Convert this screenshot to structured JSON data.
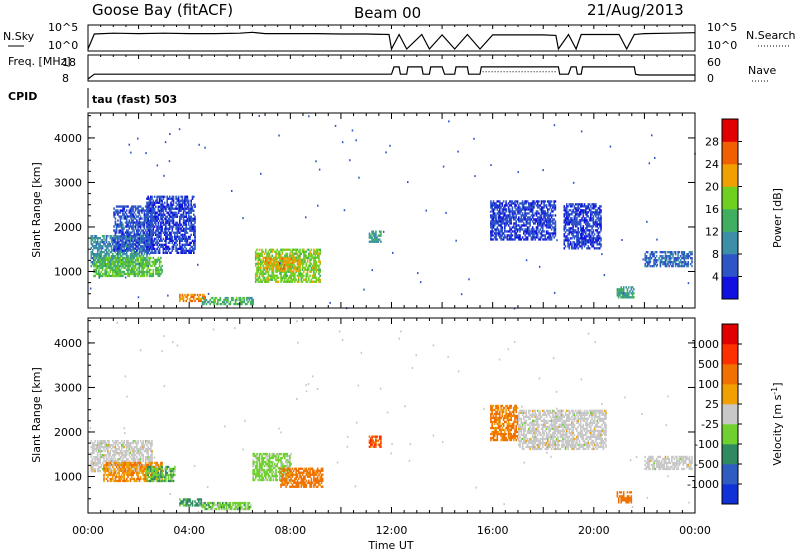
{
  "header": {
    "station": "Goose Bay (fitACF)",
    "beam": "Beam 00",
    "date": "21/Aug/2013"
  },
  "colors": {
    "ink": "#000000",
    "background": "#ffffff"
  },
  "chart_data": [
    {
      "type": "line",
      "panel": "noise",
      "left_label": "N.Sky",
      "right_label": "N.Search",
      "left_ticks": [
        "10^5",
        "10^0"
      ],
      "right_ticks": [
        "10^5",
        "10^0"
      ],
      "x_range_hours": [
        0,
        24
      ],
      "series": [
        {
          "name": "N.Sky",
          "style": "solid",
          "x": [
            0,
            0.25,
            1,
            2,
            3,
            4,
            5,
            6,
            6.5,
            7,
            8,
            9,
            10,
            11,
            11.9,
            12,
            12.3,
            12.6,
            13.2,
            13.5,
            14,
            14.5,
            15,
            15.5,
            16,
            17,
            18,
            18.5,
            18.6,
            19,
            19.3,
            19.5,
            20,
            21,
            21.3,
            21.6,
            22,
            23,
            24
          ],
          "y": [
            0,
            3.4,
            3.6,
            3.5,
            3.6,
            3.5,
            3.5,
            3.6,
            3.8,
            3.5,
            3.5,
            3.5,
            3.4,
            3.4,
            3.3,
            0,
            3.3,
            0,
            3.3,
            0,
            3.2,
            0,
            3.3,
            0,
            3.2,
            3.2,
            3.2,
            3.1,
            0,
            3.3,
            0,
            3.3,
            3.3,
            3.3,
            0,
            3.3,
            3.5,
            3.6,
            3.7
          ]
        }
      ]
    },
    {
      "type": "line",
      "panel": "frequency",
      "left_label": "Freq. [MHz]",
      "right_label": "Nave",
      "left_ticks": [
        "18",
        "8"
      ],
      "right_ticks": [
        "60",
        "0"
      ],
      "x_range_hours": [
        0,
        24
      ],
      "series": [
        {
          "name": "Freq.",
          "style": "solid",
          "x": [
            0,
            0.25,
            12,
            12.1,
            12.3,
            12.35,
            12.6,
            12.65,
            13.2,
            13.25,
            13.5,
            13.55,
            14,
            14.1,
            14.5,
            14.55,
            15,
            15.05,
            15.5,
            15.55,
            18.6,
            18.65,
            19,
            19.1,
            19.3,
            19.35,
            19.5,
            19.55,
            21.6,
            21.65,
            21.8,
            23,
            24
          ],
          "y": [
            8,
            10.2,
            10.2,
            13.5,
            13.5,
            10.2,
            10.2,
            13.5,
            13.5,
            10.2,
            10.2,
            13.5,
            13.5,
            10.2,
            10.2,
            13.5,
            13.5,
            10.2,
            10.2,
            13.5,
            13.5,
            10.2,
            10.2,
            13.5,
            13.5,
            10.2,
            10.2,
            13.5,
            13.5,
            10.2,
            9.8,
            9.8,
            9.8
          ]
        },
        {
          "name": "Nave",
          "style": "dotted",
          "x": [
            15.6,
            18.5
          ],
          "y": [
            20,
            20
          ]
        }
      ]
    },
    {
      "type": "line",
      "panel": "cpid",
      "left_label": "CPID",
      "annotation": "tau (fast) 503"
    },
    {
      "type": "heatmap",
      "panel": "power",
      "ylabel": "Slant Range [km]",
      "yticks": [
        1000,
        2000,
        3000,
        4000
      ],
      "ylim": [
        180,
        4560
      ],
      "x_range_hours": [
        0,
        24
      ],
      "colorbar_label": "Power [dB]",
      "colorbar_ticks": [
        "4",
        "8",
        "12",
        "16",
        "20",
        "24",
        "28"
      ],
      "colorbar_colors": [
        "#1010e0",
        "#2e55c8",
        "#3d8fa8",
        "#40b060",
        "#70d020",
        "#f0a000",
        "#f06000",
        "#e00000"
      ],
      "echo_regions": [
        {
          "t0": 0.1,
          "t1": 2.4,
          "r0": 1100,
          "r1": 1800,
          "value": 10
        },
        {
          "t0": 0.2,
          "t1": 2.9,
          "r0": 880,
          "r1": 1300,
          "value": 16
        },
        {
          "t0": 1.0,
          "t1": 2.5,
          "r0": 1450,
          "r1": 2450,
          "value": 6
        },
        {
          "t0": 2.3,
          "t1": 4.2,
          "r0": 1400,
          "r1": 2700,
          "value": 5
        },
        {
          "t0": 3.6,
          "t1": 4.6,
          "r0": 320,
          "r1": 460,
          "value": 24
        },
        {
          "t0": 4.5,
          "t1": 6.5,
          "r0": 250,
          "r1": 400,
          "value": 14
        },
        {
          "t0": 6.6,
          "t1": 9.2,
          "r0": 750,
          "r1": 1500,
          "value": 18
        },
        {
          "t0": 7.0,
          "t1": 8.4,
          "r0": 1000,
          "r1": 1300,
          "value": 22
        },
        {
          "t0": 11.1,
          "t1": 11.6,
          "r0": 1650,
          "r1": 1900,
          "value": 12
        },
        {
          "t0": 15.9,
          "t1": 18.5,
          "r0": 1700,
          "r1": 2600,
          "value": 5
        },
        {
          "t0": 18.8,
          "t1": 20.3,
          "r0": 1500,
          "r1": 2500,
          "value": 5
        },
        {
          "t0": 20.9,
          "t1": 21.6,
          "r0": 400,
          "r1": 650,
          "value": 12
        },
        {
          "t0": 22.0,
          "t1": 23.9,
          "r0": 1100,
          "r1": 1450,
          "value": 7
        }
      ]
    },
    {
      "type": "heatmap",
      "panel": "velocity",
      "ylabel": "Slant Range [km]",
      "yticks": [
        1000,
        2000,
        3000,
        4000
      ],
      "ylim": [
        180,
        4560
      ],
      "x_range_hours": [
        0,
        24
      ],
      "xticks": [
        "00:00",
        "04:00",
        "08:00",
        "12:00",
        "16:00",
        "20:00",
        "00:00"
      ],
      "xlabel": "Time UT",
      "colorbar_label": "Velocity [m s^-1]",
      "colorbar_ticks": [
        "1000",
        "500",
        "100",
        "25",
        "-25",
        "-100",
        "-500",
        "-1000"
      ],
      "colorbar_colors": [
        "#1030d8",
        "#2e5cc0",
        "#2f8a60",
        "#70d030",
        "#c8c8c8",
        "#f0a000",
        "#f07000",
        "#ff3000",
        "#e00000"
      ],
      "echo_regions": [
        {
          "t0": 0.1,
          "t1": 2.5,
          "r0": 1100,
          "r1": 1800,
          "value": 0
        },
        {
          "t0": 0.6,
          "t1": 2.9,
          "r0": 880,
          "r1": 1300,
          "value": -100
        },
        {
          "t0": 2.3,
          "t1": 3.4,
          "r0": 880,
          "r1": 1200,
          "value": 80
        },
        {
          "t0": 3.6,
          "t1": 4.5,
          "r0": 330,
          "r1": 500,
          "value": 200
        },
        {
          "t0": 4.5,
          "t1": 6.4,
          "r0": 250,
          "r1": 420,
          "value": 60
        },
        {
          "t0": 6.5,
          "t1": 8.0,
          "r0": 900,
          "r1": 1500,
          "value": 50
        },
        {
          "t0": 7.6,
          "t1": 9.3,
          "r0": 750,
          "r1": 1200,
          "value": -200
        },
        {
          "t0": 11.1,
          "t1": 11.6,
          "r0": 1650,
          "r1": 1900,
          "value": -500
        },
        {
          "t0": 15.9,
          "t1": 17.0,
          "r0": 1800,
          "r1": 2600,
          "value": -150
        },
        {
          "t0": 17.0,
          "t1": 20.5,
          "r0": 1600,
          "r1": 2500,
          "value": 0
        },
        {
          "t0": 20.9,
          "t1": 21.5,
          "r0": 400,
          "r1": 650,
          "value": -300
        },
        {
          "t0": 22.0,
          "t1": 23.9,
          "r0": 1150,
          "r1": 1450,
          "value": 0
        }
      ]
    }
  ]
}
